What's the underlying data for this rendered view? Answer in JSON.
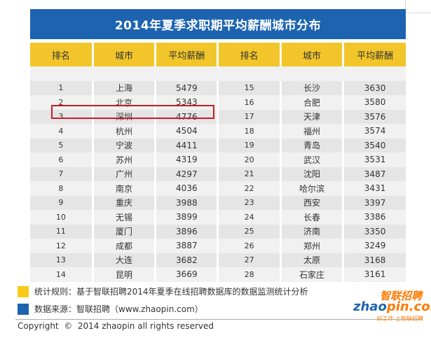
{
  "title": "2014年夏季求职期平均薪酬城市分布",
  "headers": [
    "排名",
    "城市",
    "平均薪酬",
    "排名",
    "城市",
    "平均薪酬"
  ],
  "rows": [
    [
      "1",
      "上海",
      "5479",
      "15",
      "长沙",
      "3630"
    ],
    [
      "2",
      "北京",
      "5343",
      "16",
      "合肥",
      "3580"
    ],
    [
      "3",
      "深圳",
      "4776",
      "17",
      "天津",
      "3576"
    ],
    [
      "4",
      "杭州",
      "4504",
      "18",
      "福州",
      "3574"
    ],
    [
      "5",
      "宁波",
      "4411",
      "19",
      "青岛",
      "3540"
    ],
    [
      "6",
      "苏州",
      "4319",
      "20",
      "武汉",
      "3531"
    ],
    [
      "7",
      "广州",
      "4297",
      "21",
      "沈阳",
      "3487"
    ],
    [
      "8",
      "南京",
      "4036",
      "22",
      "哈尔滨",
      "3431"
    ],
    [
      "9",
      "重庆",
      "3988",
      "23",
      "西安",
      "3397"
    ],
    [
      "10",
      "无锡",
      "3899",
      "24",
      "长春",
      "3386"
    ],
    [
      "11",
      "厦门",
      "3896",
      "25",
      "济南",
      "3350"
    ],
    [
      "12",
      "成都",
      "3887",
      "26",
      "郑州",
      "3249"
    ],
    [
      "13",
      "大连",
      "3682",
      "27",
      "太原",
      "3168"
    ],
    [
      "14",
      "昆明",
      "3669",
      "28",
      "石家庄",
      "3161"
    ]
  ],
  "legend": {
    "rule": "统计规则：基于智联招聘2014年夏季在线招聘数据库的数据监测统计分析",
    "source": "数据来源：智联招聘（www.zhaopin.com）"
  },
  "copyright": "Copyright  ©  2014 zhaopin all rights reserved",
  "logo": {
    "cn": "智联招聘",
    "en_blue": "zhao",
    "en_orange": "pin.com",
    "tagline": "好工作  上智联招聘"
  },
  "colors": {
    "title_bg": "#1d64b0",
    "header_bg": "#f2c62a",
    "highlight": "#c81d24",
    "brand_orange": "#ff7a00"
  }
}
